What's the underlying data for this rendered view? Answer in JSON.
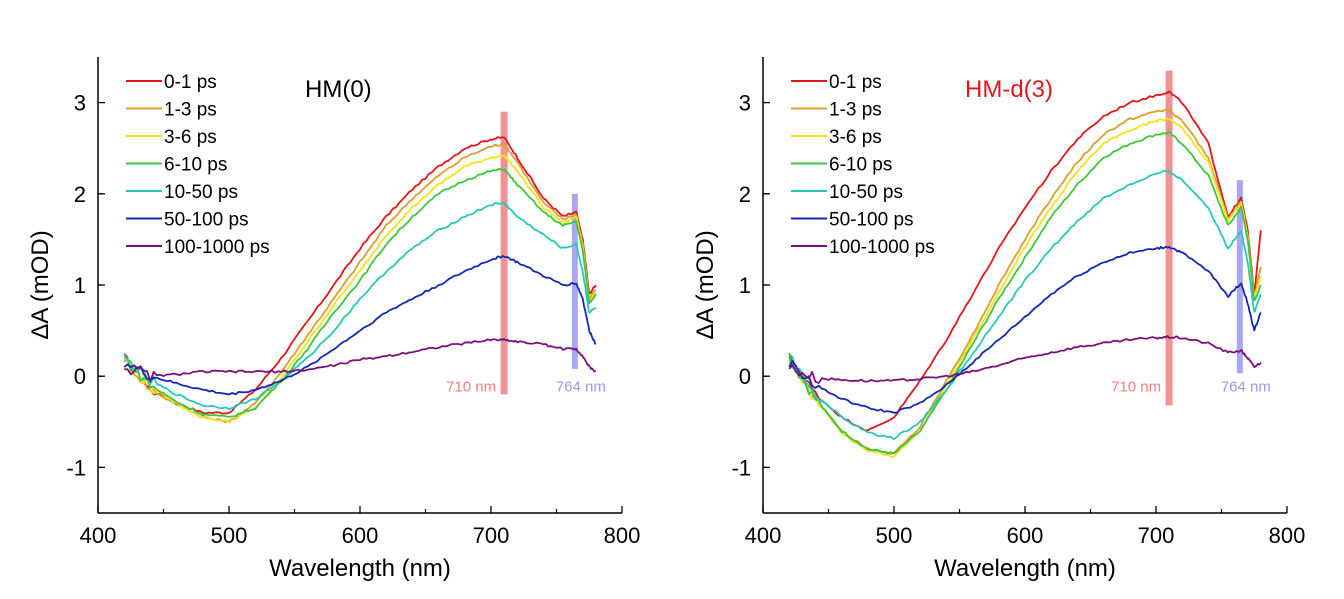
{
  "chart_data": [
    {
      "type": "line",
      "title": "HM(0)",
      "title_color": "#000000",
      "xlabel": "Wavelength (nm)",
      "ylabel": "ΔA (mOD)",
      "xlim": [
        400,
        800
      ],
      "ylim": [
        -1.5,
        3.5
      ],
      "xticks": [
        400,
        500,
        600,
        700,
        800
      ],
      "yticks": [
        -1,
        0,
        1,
        2,
        3
      ],
      "grid": false,
      "legend_position": "top-left",
      "markers": [
        {
          "x": 710,
          "label": "710 nm",
          "color": "#f08080",
          "ymin": -0.2,
          "ymax": 2.9
        },
        {
          "x": 764,
          "label": "764 nm",
          "color": "#9b98f0",
          "ymin": 0.08,
          "ymax": 2.0
        }
      ],
      "x": [
        420,
        440,
        460,
        480,
        500,
        520,
        540,
        560,
        580,
        600,
        620,
        640,
        660,
        680,
        700,
        710,
        720,
        740,
        755,
        765,
        770,
        775,
        780
      ],
      "series": [
        {
          "name": "0-1 ps",
          "color": "#e3161a",
          "values": [
            0.2,
            -0.15,
            -0.3,
            -0.4,
            -0.4,
            -0.15,
            0.2,
            0.6,
            1.0,
            1.4,
            1.75,
            2.05,
            2.3,
            2.5,
            2.6,
            2.62,
            2.4,
            1.95,
            1.75,
            1.8,
            1.5,
            0.9,
            1.0
          ]
        },
        {
          "name": "1-3 ps",
          "color": "#d9a030",
          "values": [
            0.2,
            -0.15,
            -0.3,
            -0.45,
            -0.5,
            -0.3,
            0.05,
            0.45,
            0.85,
            1.25,
            1.65,
            1.95,
            2.2,
            2.4,
            2.52,
            2.55,
            2.35,
            1.9,
            1.72,
            1.78,
            1.45,
            0.85,
            0.95
          ]
        },
        {
          "name": "3-6 ps",
          "color": "#f2e21a",
          "values": [
            0.2,
            -0.12,
            -0.3,
            -0.45,
            -0.5,
            -0.35,
            -0.02,
            0.38,
            0.78,
            1.15,
            1.55,
            1.85,
            2.1,
            2.3,
            2.4,
            2.42,
            2.25,
            1.85,
            1.68,
            1.75,
            1.42,
            0.82,
            0.92
          ]
        },
        {
          "name": "6-10 ps",
          "color": "#3cc83c",
          "values": [
            0.2,
            -0.1,
            -0.28,
            -0.42,
            -0.45,
            -0.35,
            -0.05,
            0.3,
            0.7,
            1.05,
            1.45,
            1.75,
            2.0,
            2.15,
            2.25,
            2.27,
            2.1,
            1.8,
            1.65,
            1.7,
            1.38,
            0.8,
            0.9
          ]
        },
        {
          "name": "10-50 ps",
          "color": "#28c8b8",
          "values": [
            0.2,
            -0.05,
            -0.2,
            -0.32,
            -0.35,
            -0.25,
            -0.05,
            0.2,
            0.5,
            0.85,
            1.15,
            1.4,
            1.6,
            1.75,
            1.88,
            1.9,
            1.75,
            1.55,
            1.4,
            1.45,
            1.15,
            0.7,
            0.75
          ]
        },
        {
          "name": "50-100 ps",
          "color": "#1428b4",
          "values": [
            0.15,
            0.0,
            -0.08,
            -0.15,
            -0.2,
            -0.15,
            -0.05,
            0.1,
            0.3,
            0.5,
            0.7,
            0.85,
            1.0,
            1.15,
            1.28,
            1.32,
            1.25,
            1.1,
            1.0,
            1.02,
            0.85,
            0.5,
            0.35
          ]
        },
        {
          "name": "100-1000 ps",
          "color": "#7a1080",
          "values": [
            0.1,
            0.0,
            0.02,
            0.05,
            0.05,
            0.05,
            0.05,
            0.07,
            0.12,
            0.18,
            0.22,
            0.27,
            0.32,
            0.36,
            0.4,
            0.4,
            0.38,
            0.35,
            0.3,
            0.3,
            0.22,
            0.1,
            0.05
          ]
        }
      ]
    },
    {
      "type": "line",
      "title": "HM-d(3)",
      "title_color": "#e3161a",
      "xlabel": "Wavelength (nm)",
      "ylabel": "ΔA (mOD)",
      "xlim": [
        400,
        800
      ],
      "ylim": [
        -1.5,
        3.5
      ],
      "xticks": [
        400,
        500,
        600,
        700,
        800
      ],
      "yticks": [
        -1,
        0,
        1,
        2,
        3
      ],
      "grid": false,
      "legend_position": "top-left",
      "markers": [
        {
          "x": 710,
          "label": "710 nm",
          "color": "#f08080",
          "ymin": -0.32,
          "ymax": 3.35
        },
        {
          "x": 764,
          "label": "764 nm",
          "color": "#9b98f0",
          "ymin": 0.03,
          "ymax": 2.15
        }
      ],
      "x": [
        420,
        440,
        460,
        480,
        500,
        520,
        540,
        560,
        580,
        600,
        620,
        640,
        660,
        680,
        700,
        710,
        720,
        740,
        755,
        765,
        770,
        775,
        780
      ],
      "series": [
        {
          "name": "0-1 ps",
          "color": "#e3161a",
          "values": [
            0.2,
            -0.2,
            -0.45,
            -0.6,
            -0.45,
            -0.05,
            0.4,
            0.9,
            1.4,
            1.85,
            2.25,
            2.6,
            2.85,
            3.0,
            3.08,
            3.12,
            3.0,
            2.55,
            1.75,
            1.95,
            1.6,
            0.9,
            1.6
          ]
        },
        {
          "name": "1-3 ps",
          "color": "#d9a030",
          "values": [
            0.2,
            -0.25,
            -0.6,
            -0.8,
            -0.85,
            -0.55,
            -0.05,
            0.45,
            1.0,
            1.5,
            1.95,
            2.35,
            2.65,
            2.82,
            2.9,
            2.92,
            2.8,
            2.4,
            1.72,
            1.92,
            1.55,
            0.85,
            1.2
          ]
        },
        {
          "name": "3-6 ps",
          "color": "#f2e21a",
          "values": [
            0.2,
            -0.25,
            -0.62,
            -0.82,
            -0.88,
            -0.6,
            -0.1,
            0.4,
            0.92,
            1.42,
            1.85,
            2.25,
            2.55,
            2.7,
            2.8,
            2.82,
            2.72,
            2.35,
            1.7,
            1.9,
            1.52,
            0.85,
            1.1
          ]
        },
        {
          "name": "6-10 ps",
          "color": "#3cc83c",
          "values": [
            0.2,
            -0.25,
            -0.6,
            -0.8,
            -0.85,
            -0.6,
            -0.15,
            0.35,
            0.85,
            1.3,
            1.75,
            2.1,
            2.4,
            2.55,
            2.65,
            2.67,
            2.55,
            2.2,
            1.65,
            1.85,
            1.5,
            0.82,
            1.0
          ]
        },
        {
          "name": "10-50 ps",
          "color": "#28c8b8",
          "values": [
            0.2,
            -0.2,
            -0.45,
            -0.62,
            -0.68,
            -0.5,
            -0.15,
            0.25,
            0.65,
            1.05,
            1.4,
            1.7,
            1.95,
            2.1,
            2.22,
            2.25,
            2.15,
            1.85,
            1.4,
            1.6,
            1.25,
            0.7,
            0.9
          ]
        },
        {
          "name": "50-100 ps",
          "color": "#1428b4",
          "values": [
            0.15,
            -0.1,
            -0.25,
            -0.35,
            -0.4,
            -0.3,
            -0.1,
            0.15,
            0.4,
            0.65,
            0.9,
            1.1,
            1.25,
            1.35,
            1.4,
            1.42,
            1.35,
            1.15,
            0.88,
            1.02,
            0.8,
            0.5,
            0.7
          ]
        },
        {
          "name": "100-1000 ps",
          "color": "#7a1080",
          "values": [
            0.1,
            -0.02,
            -0.04,
            -0.05,
            -0.05,
            -0.03,
            0.0,
            0.05,
            0.12,
            0.2,
            0.26,
            0.32,
            0.36,
            0.4,
            0.42,
            0.43,
            0.42,
            0.36,
            0.26,
            0.28,
            0.2,
            0.1,
            0.15
          ]
        }
      ]
    }
  ]
}
